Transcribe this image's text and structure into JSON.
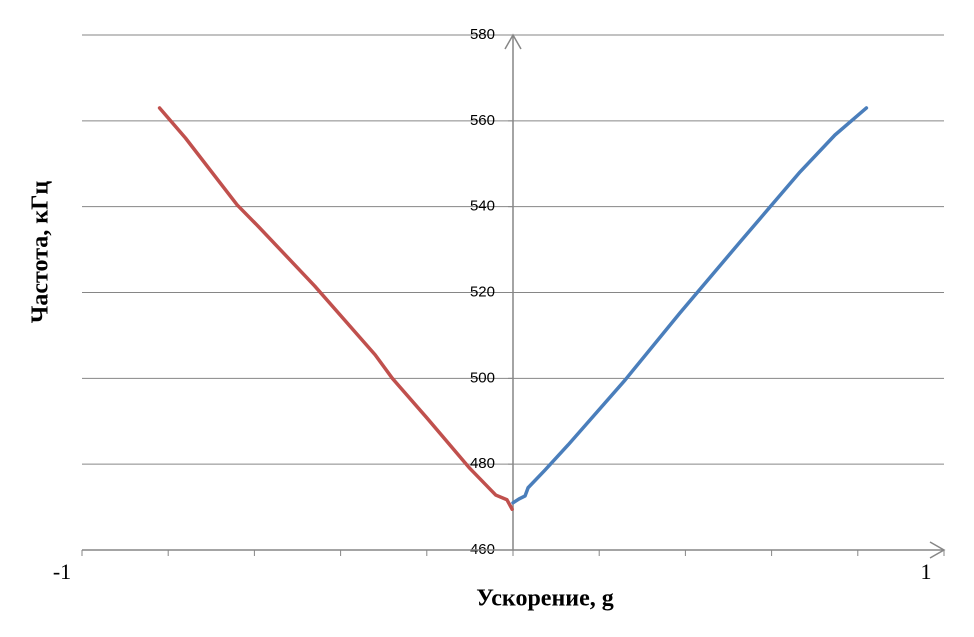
{
  "chart_data": {
    "type": "line",
    "x_label": "Ускорение, g",
    "y_label": "Частота, кГц",
    "xlim": [
      -1,
      1
    ],
    "ylim": [
      460,
      580
    ],
    "xticks": [
      -1,
      1
    ],
    "xminor_ticks": [
      -0.8,
      -0.6,
      -0.4,
      -0.2,
      0,
      0.2,
      0.4,
      0.6,
      0.8
    ],
    "yticks": [
      460,
      480,
      500,
      520,
      540,
      560,
      580
    ],
    "grid": true,
    "series": [
      {
        "color": "#c0504d",
        "x": [
          -0.82,
          -0.76,
          -0.64,
          -0.59,
          -0.46,
          -0.32,
          -0.28,
          -0.2,
          -0.1,
          -0.04,
          -0.014,
          -0.002
        ],
        "values": [
          563,
          556,
          540.4,
          535.3,
          521.5,
          505.5,
          500,
          490.8,
          479,
          472.8,
          471.7,
          469.5
        ]
      },
      {
        "color": "#4a7ebb",
        "x": [
          0,
          0.014,
          0.028,
          0.035,
          0.074,
          0.128,
          0.26,
          0.387,
          0.527,
          0.666,
          0.747,
          0.82
        ],
        "values": [
          471,
          471.9,
          472.6,
          474.5,
          478.6,
          484.5,
          499.6,
          515.2,
          531.8,
          548.1,
          556.7,
          563
        ]
      }
    ]
  }
}
